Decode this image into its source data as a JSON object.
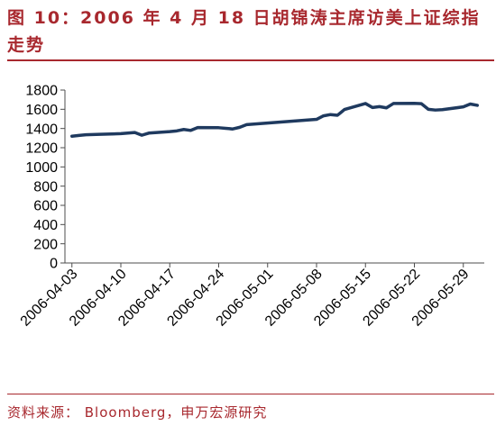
{
  "colors": {
    "accent": "#A8282E",
    "series_line": "#1F3A5F",
    "axis": "#4D4D4D"
  },
  "chart_data": {
    "type": "line",
    "title": "图 10：2006 年 4 月 18 日胡锦涛主席访美上证综指走势",
    "xlim": [
      "2006-04-02",
      "2006-06-01"
    ],
    "ylim": [
      0,
      1800
    ],
    "grid": false,
    "legend": false,
    "x_ticks": [
      "2006-04-03",
      "2006-04-10",
      "2006-04-17",
      "2006-04-24",
      "2006-05-01",
      "2006-05-08",
      "2006-05-15",
      "2006-05-22",
      "2006-05-29"
    ],
    "y_ticks": [
      0,
      200,
      400,
      600,
      800,
      1000,
      1200,
      1400,
      1600,
      1800
    ],
    "x": [
      "2006-04-03",
      "2006-04-04",
      "2006-04-05",
      "2006-04-06",
      "2006-04-07",
      "2006-04-10",
      "2006-04-11",
      "2006-04-12",
      "2006-04-13",
      "2006-04-14",
      "2006-04-17",
      "2006-04-18",
      "2006-04-19",
      "2006-04-20",
      "2006-04-21",
      "2006-04-24",
      "2006-04-25",
      "2006-04-26",
      "2006-04-27",
      "2006-04-28",
      "2006-05-08",
      "2006-05-09",
      "2006-05-10",
      "2006-05-11",
      "2006-05-12",
      "2006-05-15",
      "2006-05-16",
      "2006-05-17",
      "2006-05-18",
      "2006-05-19",
      "2006-05-22",
      "2006-05-23",
      "2006-05-24",
      "2006-05-25",
      "2006-05-26",
      "2006-05-29",
      "2006-05-30",
      "2006-05-31"
    ],
    "series": [
      {
        "values": [
          1320,
          1328,
          1335,
          1337,
          1340,
          1346,
          1352,
          1358,
          1330,
          1352,
          1368,
          1375,
          1390,
          1380,
          1410,
          1408,
          1402,
          1395,
          1412,
          1440,
          1495,
          1532,
          1545,
          1538,
          1598,
          1660,
          1618,
          1628,
          1615,
          1660,
          1662,
          1658,
          1600,
          1592,
          1596,
          1625,
          1655,
          1641
        ]
      }
    ]
  },
  "footer": {
    "source": "资料来源： Bloomberg，申万宏源研究"
  }
}
